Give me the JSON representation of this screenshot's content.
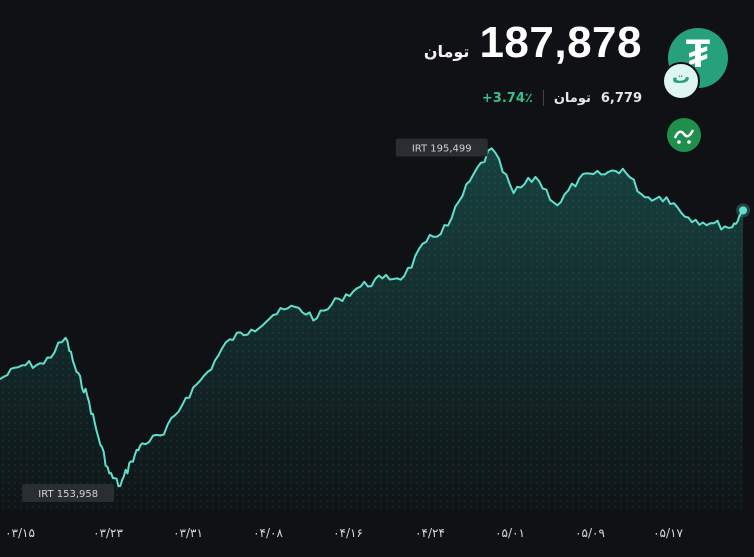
{
  "header": {
    "price": "187,878",
    "price_unit": "تومان",
    "change": "+3.74٪",
    "usd_amount": "6,779",
    "usd_unit": "تومان"
  },
  "icons": {
    "logo": "tether-logo-icon",
    "badge": "toman-badge-icon",
    "watermark": "khabar-fori-logo-icon"
  },
  "colors": {
    "line": "#5fe0cc",
    "positive": "#35c08b",
    "logo": "#26a17b",
    "background": "#0f1114"
  },
  "chart_data": {
    "type": "area",
    "title": "",
    "xlabel": "",
    "ylabel": "",
    "x_ticks": [
      "۰۳/۱۵",
      "۰۳/۲۳",
      "۰۳/۳۱",
      "۰۴/۰۸",
      "۰۴/۱۶",
      "۰۴/۲۴",
      "۰۵/۰۱",
      "۰۵/۰۹",
      "۰۵/۱۷"
    ],
    "x": [
      "2024-03-13",
      "2024-03-15",
      "2024-03-17",
      "2024-03-19",
      "2024-03-20",
      "2024-03-21",
      "2024-03-22",
      "2024-03-23",
      "2024-03-24",
      "2024-03-25",
      "2024-03-26",
      "2024-03-28",
      "2024-03-30",
      "2024-04-01",
      "2024-04-03",
      "2024-04-05",
      "2024-04-07",
      "2024-04-09",
      "2024-04-11",
      "2024-04-13",
      "2024-04-15",
      "2024-04-17",
      "2024-04-19",
      "2024-04-21",
      "2024-04-23",
      "2024-04-25",
      "2024-04-27",
      "2024-04-29",
      "2024-05-01",
      "2024-05-03",
      "2024-05-05",
      "2024-05-07",
      "2024-05-09",
      "2024-05-11",
      "2024-05-13",
      "2024-05-15",
      "2024-05-17",
      "2024-05-19",
      "2024-05-20"
    ],
    "series": [
      {
        "values": [
          167100,
          168800,
          169000,
          172200,
          168000,
          165000,
          160000,
          155500,
          153958,
          157000,
          159200,
          160300,
          164800,
          168000,
          172000,
          173200,
          175000,
          176000,
          174600,
          177000,
          178500,
          179500,
          179800,
          184000,
          186000,
          191500,
          195499,
          190000,
          192000,
          188500,
          191800,
          192300,
          193000,
          189500,
          189500,
          187000,
          186300,
          185800,
          187878
        ]
      }
    ],
    "annotations": [
      {
        "label": "IRT 195,499",
        "x": "2024-04-27",
        "y": 195499
      },
      {
        "label": "IRT 153,958",
        "x": "2024-03-24",
        "y": 153958
      }
    ],
    "xlim": [
      "2024-03-13",
      "2024-05-21"
    ],
    "ylim": [
      151000,
      199000
    ],
    "grid": false,
    "legend": "none"
  }
}
